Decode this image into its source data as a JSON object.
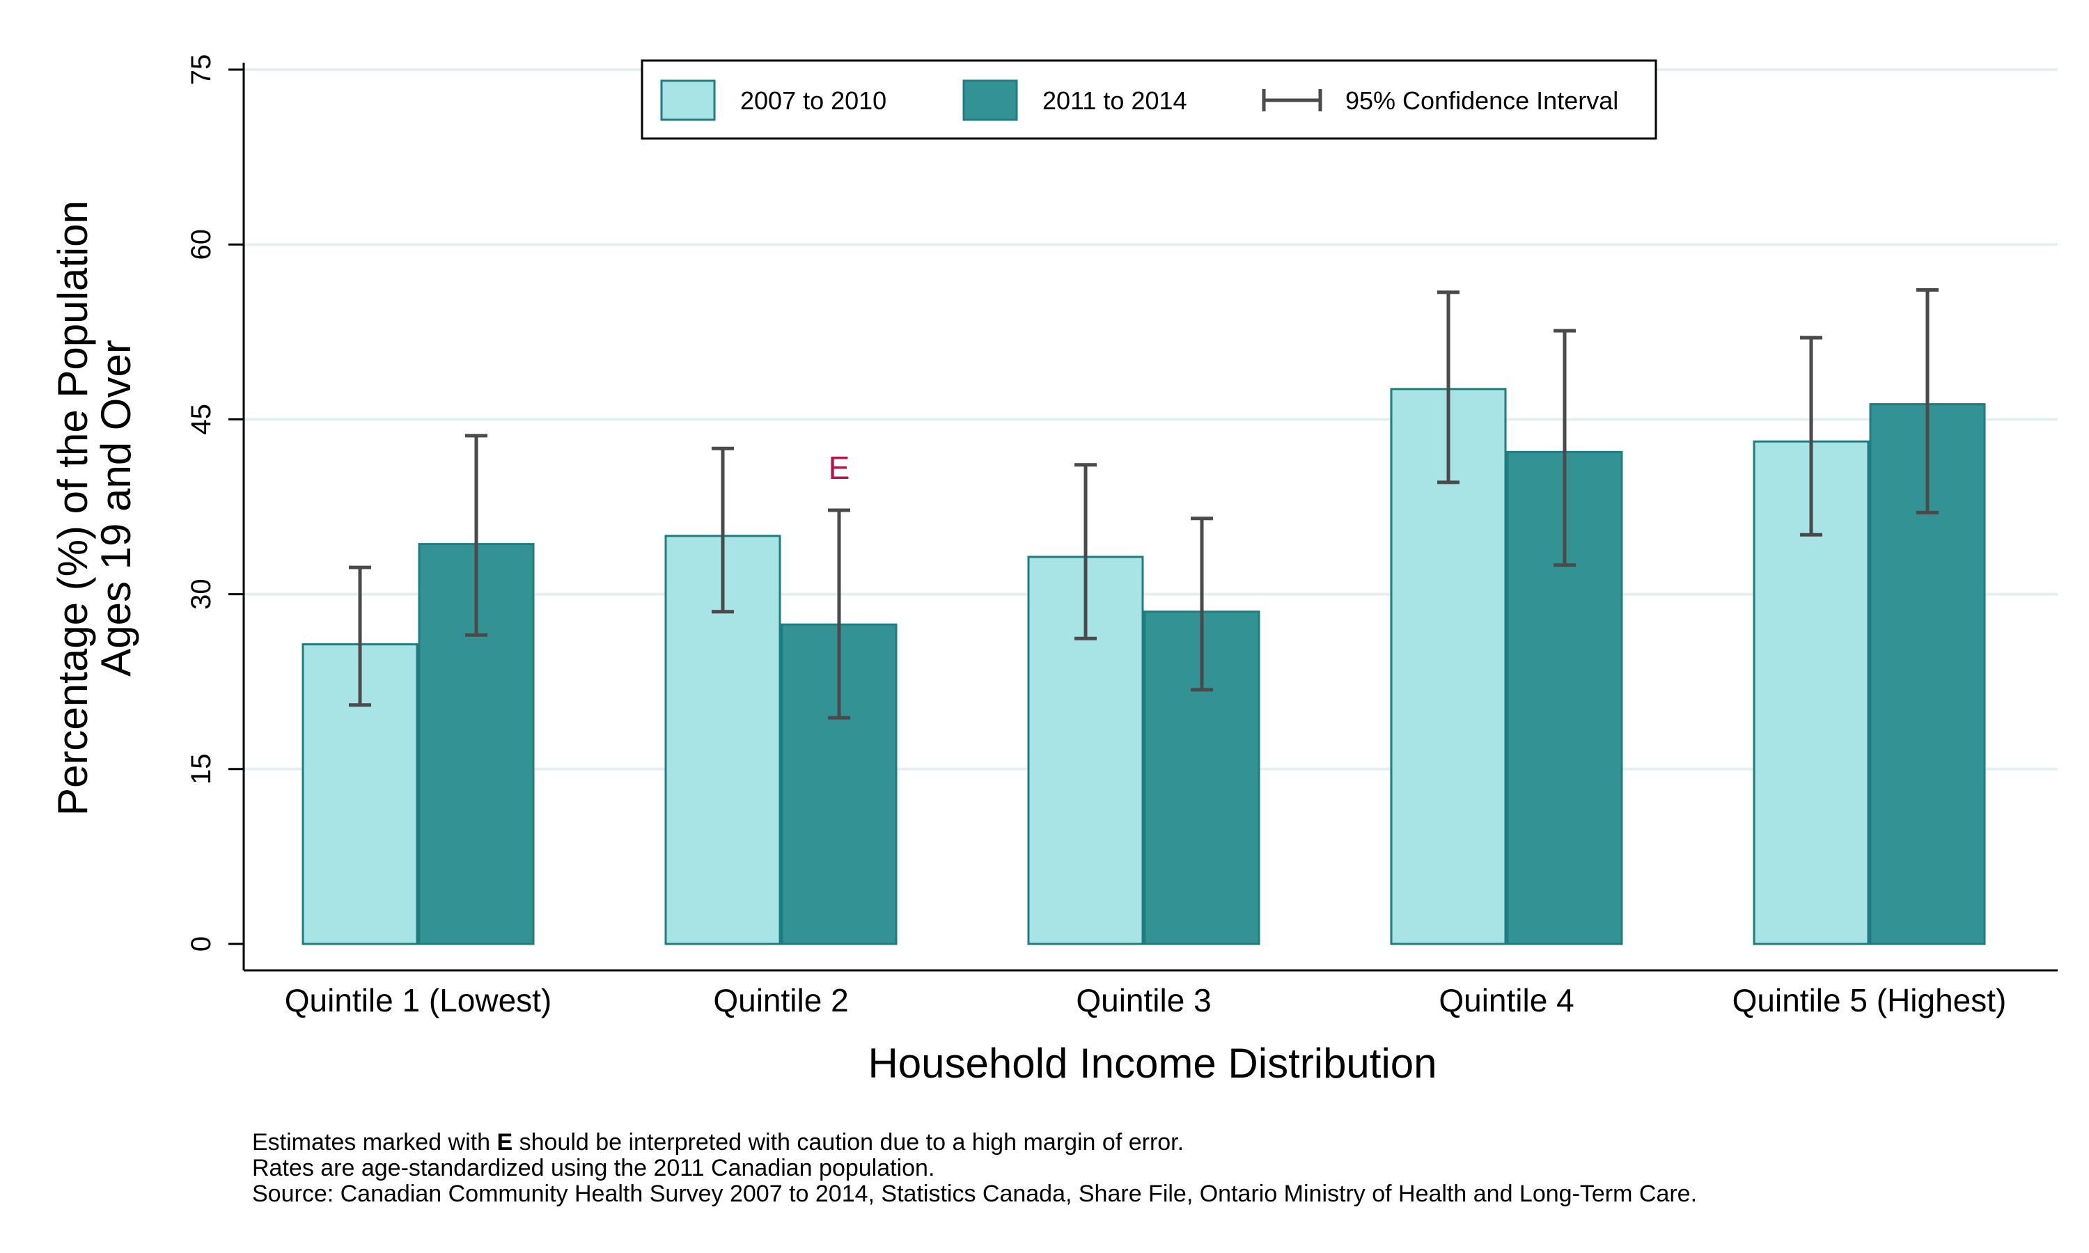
{
  "chart_data": {
    "type": "bar",
    "categories": [
      "Quintile 1 (Lowest)",
      "Quintile 2",
      "Quintile 3",
      "Quintile 4",
      "Quintile 5 (Highest)"
    ],
    "series": [
      {
        "name": "2007 to 2010",
        "color": "#a8e4e6",
        "values": [
          25.7,
          35.0,
          33.2,
          47.6,
          43.1
        ],
        "ci_low": [
          20.5,
          28.5,
          26.2,
          39.6,
          35.1
        ],
        "ci_high": [
          32.3,
          42.5,
          41.1,
          55.9,
          52.0
        ],
        "flags": [
          "",
          "",
          "",
          "",
          ""
        ]
      },
      {
        "name": "2011 to 2014",
        "color": "#339294",
        "values": [
          34.3,
          27.4,
          28.5,
          42.2,
          46.3
        ],
        "ci_low": [
          26.5,
          19.4,
          21.8,
          32.5,
          37.0
        ],
        "ci_high": [
          43.6,
          37.2,
          36.5,
          52.6,
          56.1
        ],
        "flags": [
          "",
          "E",
          "",
          "",
          ""
        ]
      }
    ],
    "ci_legend_label": "95% Confidence Interval",
    "xlabel": "Household Income Distribution",
    "ylabel_line1": "Percentage (%) of the Population",
    "ylabel_line2": "Ages 19 and Over",
    "ylim": [
      0,
      75
    ],
    "yticks": [
      0,
      15,
      30,
      45,
      60,
      75
    ],
    "grid": true,
    "legend_position": "top"
  },
  "footnotes": {
    "line1_prefix": "Estimates marked with",
    "line1_flag": "E",
    "line1_suffix": "should be interpreted with caution due to a high margin of error.",
    "line2": "Rates are age-standardized using the 2011 Canadian population.",
    "line3": "Source: Canadian Community Health Survey 2007 to 2014, Statistics Canada, Share File, Ontario Ministry of Health and Long-Term Care."
  },
  "colors": {
    "ci": "#4a4a4a",
    "grid": "#e6efef",
    "bar_stroke": "#1f7d80",
    "flag": "#b5154b"
  }
}
